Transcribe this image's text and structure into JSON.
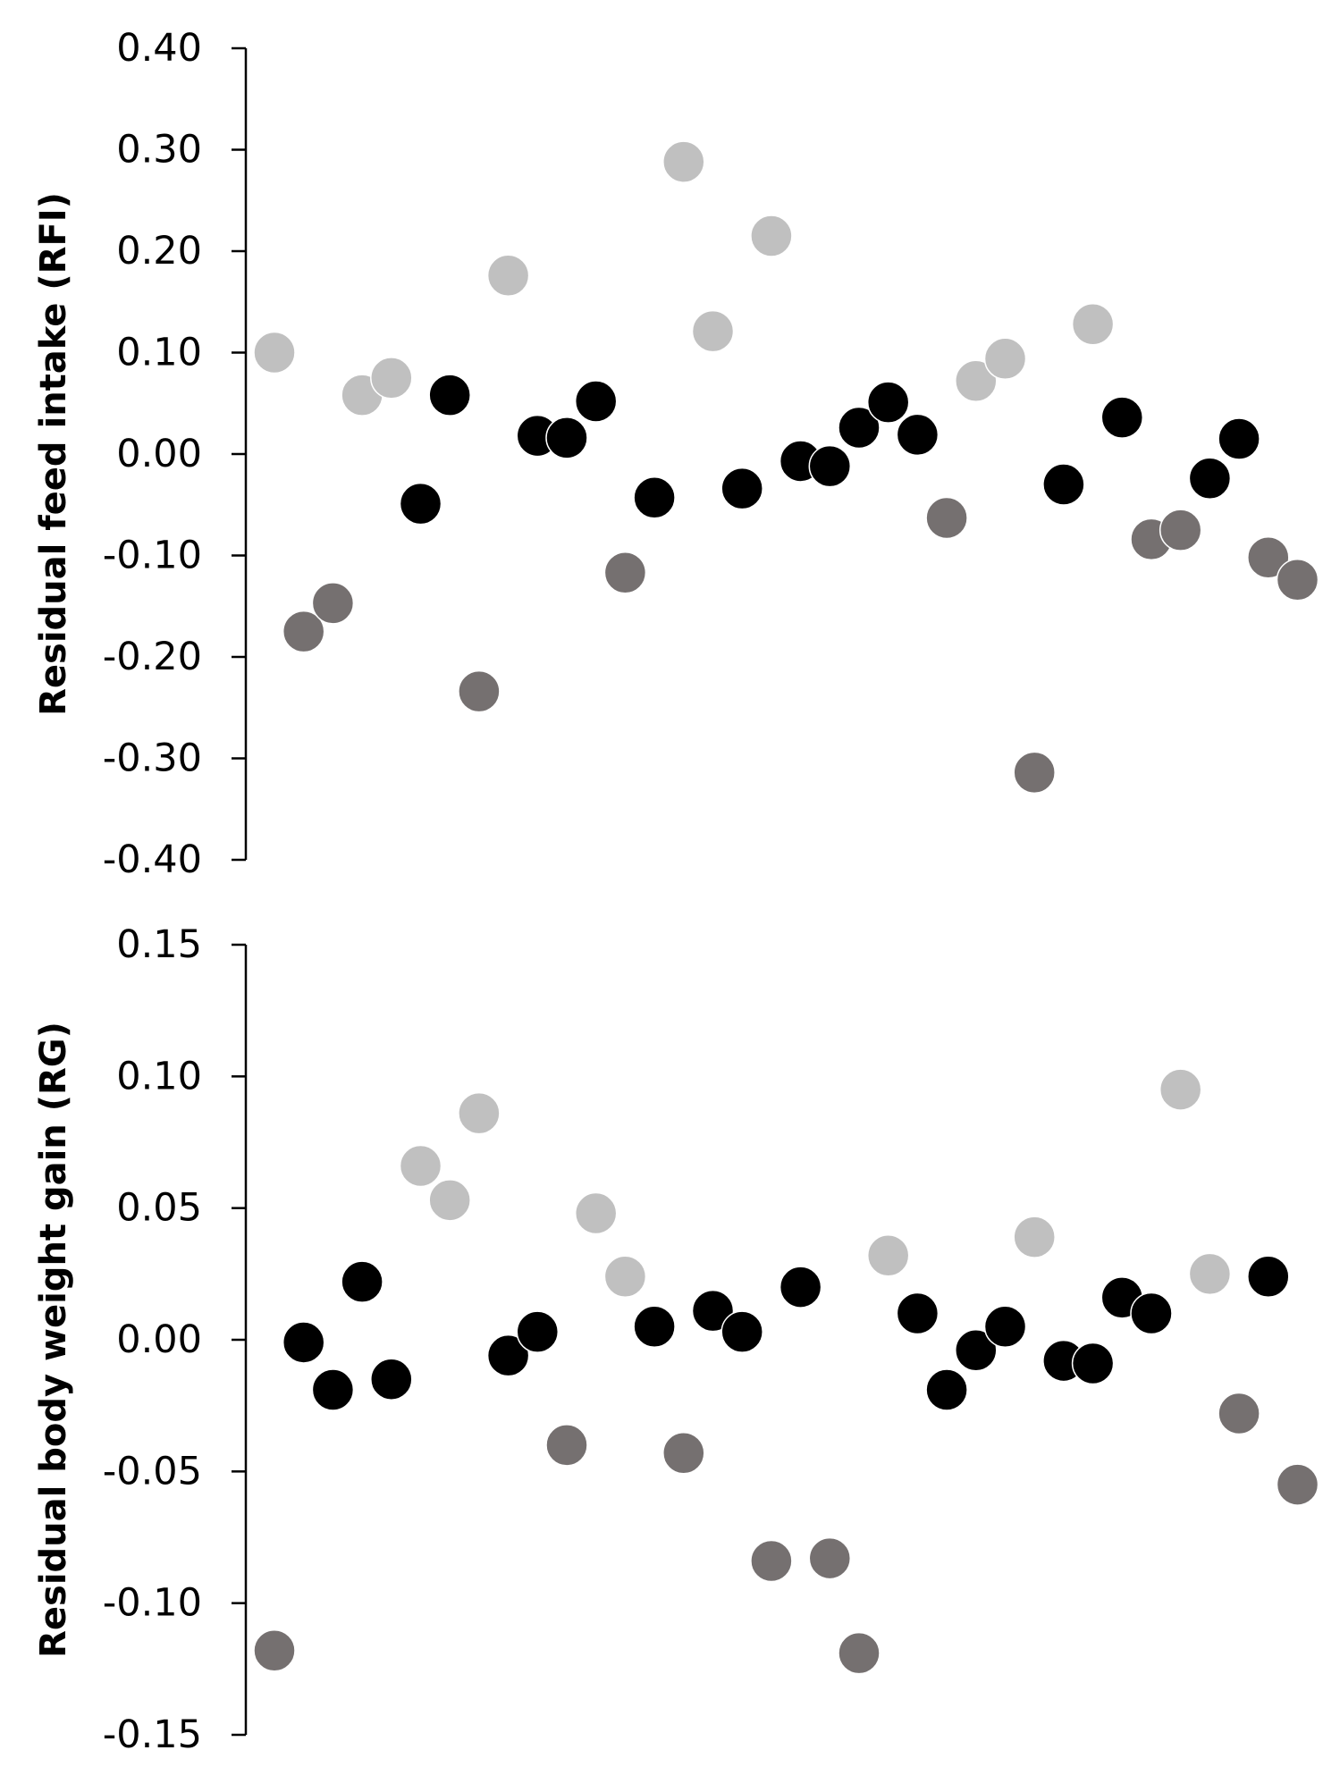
{
  "chart_data": [
    {
      "type": "scatter",
      "title": "",
      "xlabel": "",
      "ylabel": "Residual feed intake (RFI)",
      "ylim": [
        -0.4,
        0.4
      ],
      "yticks": [
        "0.40",
        "0.30",
        "0.20",
        "0.10",
        "0.00",
        "-0.10",
        "-0.20",
        "-0.30",
        "-0.40"
      ],
      "grid": false,
      "colors": {
        "light": "#c0c0c0",
        "black": "#000000",
        "dark": "#757070"
      },
      "points": [
        {
          "x": 1,
          "y": 0.1,
          "g": "light"
        },
        {
          "x": 2,
          "y": -0.175,
          "g": "dark"
        },
        {
          "x": 3,
          "y": -0.147,
          "g": "dark"
        },
        {
          "x": 4,
          "y": 0.058,
          "g": "light"
        },
        {
          "x": 5,
          "y": 0.075,
          "g": "light"
        },
        {
          "x": 6,
          "y": -0.049,
          "g": "black"
        },
        {
          "x": 7,
          "y": 0.058,
          "g": "black"
        },
        {
          "x": 8,
          "y": -0.234,
          "g": "dark"
        },
        {
          "x": 9,
          "y": 0.176,
          "g": "light"
        },
        {
          "x": 10,
          "y": 0.018,
          "g": "black"
        },
        {
          "x": 11,
          "y": 0.016,
          "g": "black"
        },
        {
          "x": 12,
          "y": 0.052,
          "g": "black"
        },
        {
          "x": 13,
          "y": -0.117,
          "g": "dark"
        },
        {
          "x": 14,
          "y": -0.043,
          "g": "black"
        },
        {
          "x": 15,
          "y": 0.288,
          "g": "light"
        },
        {
          "x": 16,
          "y": 0.121,
          "g": "light"
        },
        {
          "x": 17,
          "y": -0.034,
          "g": "black"
        },
        {
          "x": 18,
          "y": 0.215,
          "g": "light"
        },
        {
          "x": 19,
          "y": -0.007,
          "g": "black"
        },
        {
          "x": 20,
          "y": -0.012,
          "g": "black"
        },
        {
          "x": 21,
          "y": 0.026,
          "g": "black"
        },
        {
          "x": 22,
          "y": 0.051,
          "g": "black"
        },
        {
          "x": 23,
          "y": 0.019,
          "g": "black"
        },
        {
          "x": 24,
          "y": -0.063,
          "g": "dark"
        },
        {
          "x": 25,
          "y": 0.072,
          "g": "light"
        },
        {
          "x": 26,
          "y": 0.094,
          "g": "light"
        },
        {
          "x": 27,
          "y": -0.314,
          "g": "dark"
        },
        {
          "x": 28,
          "y": -0.03,
          "g": "black"
        },
        {
          "x": 29,
          "y": 0.128,
          "g": "light"
        },
        {
          "x": 30,
          "y": 0.036,
          "g": "black"
        },
        {
          "x": 31,
          "y": -0.084,
          "g": "dark"
        },
        {
          "x": 32,
          "y": -0.075,
          "g": "dark"
        },
        {
          "x": 33,
          "y": -0.024,
          "g": "black"
        },
        {
          "x": 34,
          "y": 0.015,
          "g": "black"
        },
        {
          "x": 35,
          "y": -0.102,
          "g": "dark"
        },
        {
          "x": 36,
          "y": -0.124,
          "g": "dark"
        }
      ]
    },
    {
      "type": "scatter",
      "title": "",
      "xlabel": "",
      "ylabel": "Residual body weight gain (RG)",
      "ylim": [
        -0.15,
        0.15
      ],
      "yticks": [
        "0.15",
        "0.10",
        "0.05",
        "0.00",
        "-0.05",
        "-0.10",
        "-0.15"
      ],
      "grid": false,
      "colors": {
        "light": "#c0c0c0",
        "black": "#000000",
        "dark": "#757070"
      },
      "points": [
        {
          "x": 1,
          "y": -0.118,
          "g": "dark"
        },
        {
          "x": 2,
          "y": -0.001,
          "g": "black"
        },
        {
          "x": 3,
          "y": -0.019,
          "g": "black"
        },
        {
          "x": 4,
          "y": 0.022,
          "g": "black"
        },
        {
          "x": 5,
          "y": -0.015,
          "g": "black"
        },
        {
          "x": 6,
          "y": 0.066,
          "g": "light"
        },
        {
          "x": 7,
          "y": 0.053,
          "g": "light"
        },
        {
          "x": 8,
          "y": 0.086,
          "g": "light"
        },
        {
          "x": 9,
          "y": -0.006,
          "g": "black"
        },
        {
          "x": 10,
          "y": 0.003,
          "g": "black"
        },
        {
          "x": 11,
          "y": -0.04,
          "g": "dark"
        },
        {
          "x": 12,
          "y": 0.048,
          "g": "light"
        },
        {
          "x": 13,
          "y": 0.024,
          "g": "light"
        },
        {
          "x": 14,
          "y": 0.005,
          "g": "black"
        },
        {
          "x": 15,
          "y": -0.043,
          "g": "dark"
        },
        {
          "x": 16,
          "y": 0.011,
          "g": "black"
        },
        {
          "x": 17,
          "y": 0.003,
          "g": "black"
        },
        {
          "x": 18,
          "y": -0.084,
          "g": "dark"
        },
        {
          "x": 19,
          "y": 0.02,
          "g": "black"
        },
        {
          "x": 20,
          "y": -0.083,
          "g": "dark"
        },
        {
          "x": 21,
          "y": -0.119,
          "g": "dark"
        },
        {
          "x": 22,
          "y": 0.032,
          "g": "light"
        },
        {
          "x": 23,
          "y": 0.01,
          "g": "black"
        },
        {
          "x": 24,
          "y": -0.019,
          "g": "black"
        },
        {
          "x": 25,
          "y": -0.004,
          "g": "black"
        },
        {
          "x": 26,
          "y": 0.005,
          "g": "black"
        },
        {
          "x": 27,
          "y": 0.039,
          "g": "light"
        },
        {
          "x": 28,
          "y": -0.008,
          "g": "black"
        },
        {
          "x": 29,
          "y": -0.009,
          "g": "black"
        },
        {
          "x": 30,
          "y": 0.016,
          "g": "black"
        },
        {
          "x": 31,
          "y": 0.01,
          "g": "black"
        },
        {
          "x": 32,
          "y": 0.095,
          "g": "light"
        },
        {
          "x": 33,
          "y": 0.025,
          "g": "light"
        },
        {
          "x": 34,
          "y": -0.028,
          "g": "dark"
        },
        {
          "x": 35,
          "y": 0.024,
          "g": "black"
        },
        {
          "x": 36,
          "y": -0.055,
          "g": "dark"
        }
      ]
    }
  ]
}
